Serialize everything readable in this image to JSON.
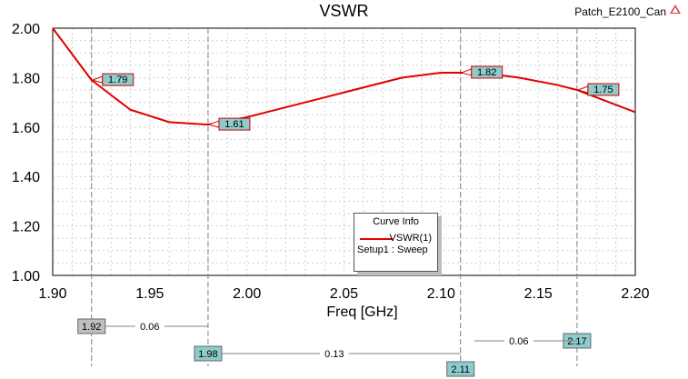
{
  "header": {
    "project_name": "Patch_E2100_Can"
  },
  "legend": {
    "title": "Curve Info",
    "series_label": "VSWR(1)",
    "setup_label": "Setup1 : Sweep"
  },
  "colors": {
    "curve": "#e00000",
    "marker_fill": "#8ecbcc",
    "marker_border": "#d40000",
    "grid": "#cfcfcf",
    "marker_line": "#808080"
  },
  "chart_data": {
    "type": "line",
    "title": "VSWR",
    "xlabel": "Freq [GHz]",
    "ylabel": "",
    "xlim": [
      1.9,
      2.2
    ],
    "ylim": [
      1.0,
      2.0
    ],
    "x_ticks": [
      "1.90",
      "1.95",
      "2.00",
      "2.05",
      "2.10",
      "2.15",
      "2.20"
    ],
    "y_ticks": [
      "1.00",
      "1.20",
      "1.40",
      "1.60",
      "1.80",
      "2.00"
    ],
    "grid": true,
    "legend_position": "bottom-center",
    "series": [
      {
        "name": "VSWR(1)",
        "x": [
          1.9,
          1.92,
          1.94,
          1.96,
          1.98,
          2.0,
          2.02,
          2.04,
          2.06,
          2.08,
          2.1,
          2.11,
          2.12,
          2.14,
          2.16,
          2.17,
          2.18,
          2.2
        ],
        "y": [
          2.0,
          1.79,
          1.67,
          1.62,
          1.61,
          1.64,
          1.68,
          1.72,
          1.76,
          1.8,
          1.82,
          1.82,
          1.82,
          1.8,
          1.77,
          1.75,
          1.72,
          1.66
        ]
      }
    ],
    "markers": [
      {
        "x": 1.92,
        "y": 1.79,
        "label": "1.79"
      },
      {
        "x": 1.98,
        "y": 1.61,
        "label": "1.61"
      },
      {
        "x": 2.11,
        "y": 1.82,
        "label": "1.82"
      },
      {
        "x": 2.17,
        "y": 1.75,
        "label": "1.75"
      }
    ],
    "marker_x_labels": [
      "1.92",
      "1.98",
      "2.11",
      "2.17"
    ],
    "deltas": [
      {
        "from": 1.92,
        "to": 1.98,
        "label": "0.06"
      },
      {
        "from": 1.98,
        "to": 2.11,
        "label": "0.13"
      },
      {
        "from": 2.11,
        "to": 2.17,
        "label": "0.06"
      }
    ]
  }
}
